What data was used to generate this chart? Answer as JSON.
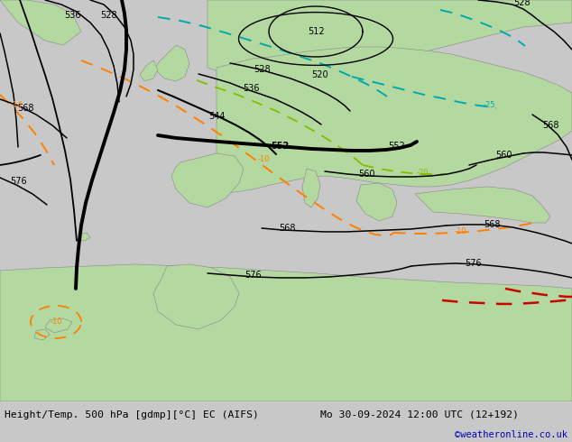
{
  "title_left": "Height/Temp. 500 hPa [gdmp][°C] EC (AIFS)",
  "title_right": "Mo 30-09-2024 12:00 UTC (12+192)",
  "copyright": "©weatheronline.co.uk",
  "sea_color": "#bebebe",
  "land_color": "#b4d9a0",
  "footer_bg": "#c8c8c8",
  "map_bg": "#bebebe"
}
